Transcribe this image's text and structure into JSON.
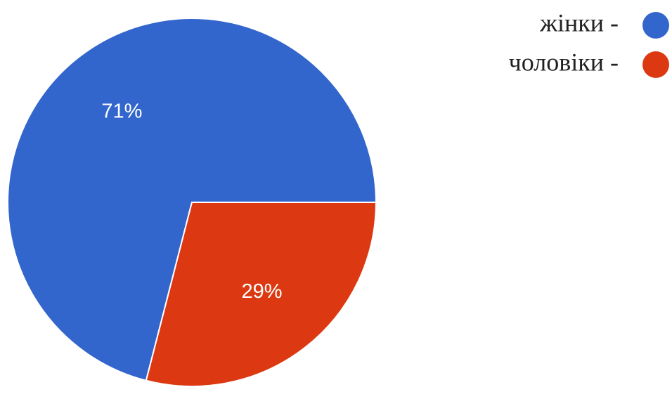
{
  "chart_data": {
    "type": "pie",
    "slices": [
      {
        "label": "жінки -",
        "value": 71,
        "value_label": "71%",
        "color": "#3366cc"
      },
      {
        "label": "чоловіки -",
        "value": 29,
        "value_label": "29%",
        "color": "#dc3912"
      }
    ],
    "legend_position": "top-right",
    "slice_border_color": "#ffffff"
  }
}
